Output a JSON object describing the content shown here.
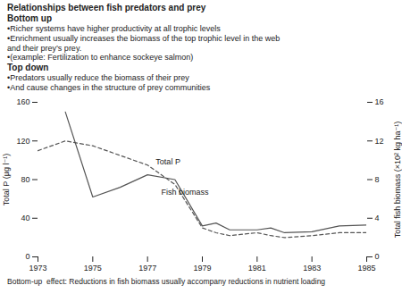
{
  "chart_data": {
    "type": "line",
    "title": "Relationships between fish predators and prey",
    "sections": [
      {
        "header": "Bottom up",
        "items": [
          "•Richer systems have higher productivity at all trophic levels",
          "•Enrichment usually increases the biomass of the top trophic level in the web\nand their prey’s prey.",
          "•(example: Fertilization to enhance sockeye salmon)"
        ]
      },
      {
        "header": "Top down",
        "items": [
          "•Predators usually reduce the biomass of their prey",
          "•And cause changes in the structure of prey communities"
        ]
      }
    ],
    "caption": "Bottom-up  effect: Reductions in fish biomass usually accompany reductions in nutrient loading",
    "x": [
      1973,
      1974,
      1975,
      1976,
      1977,
      1978,
      1979,
      1979.5,
      1980,
      1981,
      1981.5,
      1982,
      1983,
      1984,
      1985
    ],
    "series": [
      {
        "name": "Total P",
        "color": "#555555",
        "line_style": "dashed",
        "values": [
          110,
          120,
          115,
          105,
          95,
          75,
          30,
          25,
          22,
          25,
          22,
          20,
          22,
          25,
          25
        ]
      },
      {
        "name": "Fish biomass",
        "color": "#555555",
        "line_style": "solid",
        "values": [
          null,
          150,
          62,
          72,
          85,
          80,
          32,
          35,
          28,
          28,
          30,
          25,
          26,
          32,
          33
        ]
      }
    ],
    "xlim": [
      1973,
      1985
    ],
    "xticks": [
      1973,
      1975,
      1977,
      1979,
      1981,
      1983,
      1985
    ],
    "ylim": [
      0,
      160
    ],
    "yticks": [
      0,
      40,
      80,
      120,
      160
    ],
    "y2lim": [
      0,
      16
    ],
    "y2ticks": [
      0,
      4,
      8,
      12,
      16
    ],
    "ylabel": "Total P (µg l⁻¹)",
    "y2label": "Total fish biomass (×10² kg ha⁻¹)",
    "grid": false,
    "annotations": [
      {
        "text": "Total P",
        "x": 1977.3,
        "y": 96
      },
      {
        "text": "Fish biomass",
        "x": 1977.5,
        "y": 70
      }
    ]
  }
}
